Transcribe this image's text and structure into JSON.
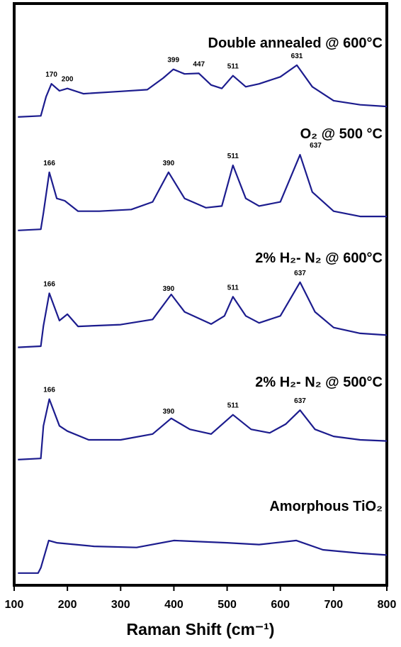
{
  "chart_data": {
    "type": "line",
    "xlabel": "Raman Shift (cm⁻¹)",
    "xlim": [
      100,
      800
    ],
    "xticks": [
      100,
      200,
      300,
      400,
      500,
      600,
      700,
      800
    ],
    "ylim": [
      0,
      100
    ],
    "color": "#1c1c8e",
    "series": [
      {
        "name": "Double annealed @ 600°C",
        "x": [
          107,
          150,
          160,
          170,
          185,
          200,
          230,
          300,
          350,
          380,
          399,
          420,
          447,
          470,
          490,
          511,
          535,
          560,
          600,
          631,
          660,
          700,
          750,
          800
        ],
        "values": [
          80.5,
          80.7,
          84.0,
          86.2,
          85.0,
          85.4,
          84.5,
          84.9,
          85.2,
          87.2,
          88.7,
          87.9,
          88.0,
          86.0,
          85.4,
          87.6,
          85.7,
          86.2,
          87.4,
          89.4,
          85.7,
          83.3,
          82.6,
          82.3
        ],
        "peaks": [
          170,
          200,
          399,
          447,
          511,
          631
        ]
      },
      {
        "name": "O₂ @ 500 °C",
        "x": [
          107,
          150,
          155,
          166,
          180,
          195,
          220,
          260,
          320,
          360,
          390,
          420,
          460,
          490,
          511,
          535,
          560,
          600,
          637,
          660,
          700,
          750,
          800
        ],
        "values": [
          61.0,
          61.2,
          64.0,
          71.0,
          66.5,
          66.1,
          64.3,
          64.3,
          64.6,
          65.9,
          71.0,
          66.5,
          64.9,
          65.2,
          72.2,
          66.5,
          65.2,
          65.9,
          74.0,
          67.6,
          64.3,
          63.4,
          63.4
        ],
        "peaks": [
          166,
          390,
          511,
          637
        ]
      },
      {
        "name": "2% H₂- N₂ @ 600°C",
        "x": [
          107,
          150,
          155,
          166,
          185,
          200,
          220,
          300,
          360,
          395,
          420,
          470,
          495,
          511,
          535,
          560,
          600,
          637,
          665,
          700,
          750,
          800
        ],
        "values": [
          40.9,
          41.1,
          44.6,
          50.2,
          45.5,
          46.6,
          44.5,
          44.8,
          45.7,
          50.0,
          47.0,
          44.9,
          46.3,
          49.6,
          46.3,
          45.1,
          46.3,
          52.1,
          47.0,
          44.3,
          43.3,
          43.0
        ],
        "peaks": [
          166,
          390,
          511,
          637
        ]
      },
      {
        "name": "2% H₂- N₂ @ 500°C",
        "x": [
          107,
          150,
          155,
          166,
          185,
          200,
          240,
          300,
          360,
          395,
          430,
          470,
          511,
          545,
          580,
          610,
          637,
          665,
          700,
          750,
          800
        ],
        "values": [
          21.6,
          21.8,
          27.4,
          32.0,
          27.4,
          26.5,
          25.0,
          25.0,
          26.0,
          28.7,
          26.8,
          26.0,
          29.3,
          26.8,
          26.2,
          27.7,
          30.1,
          26.8,
          25.6,
          25.0,
          24.8
        ],
        "peaks": [
          166,
          390,
          511,
          637
        ]
      },
      {
        "name": "Amorphous TiO₂",
        "x": [
          107,
          145,
          150,
          165,
          180,
          250,
          330,
          400,
          500,
          560,
          630,
          680,
          750,
          800
        ],
        "values": [
          2.1,
          2.1,
          3.0,
          7.7,
          7.3,
          6.7,
          6.5,
          7.7,
          7.3,
          7.0,
          7.7,
          6.1,
          5.5,
          5.2
        ],
        "peaks": []
      }
    ]
  }
}
